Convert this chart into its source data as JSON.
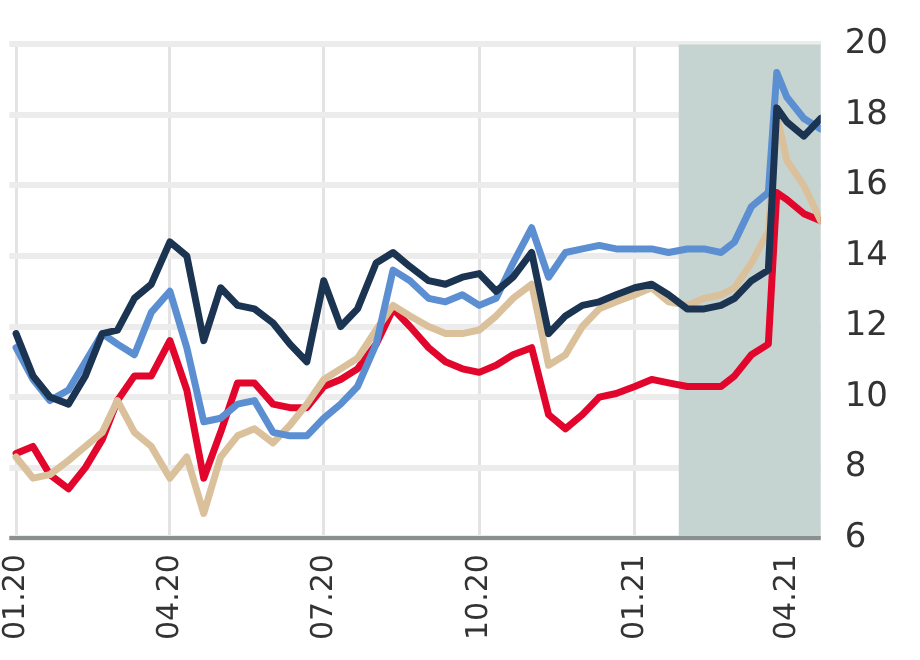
{
  "chart_data": {
    "type": "line",
    "x": [
      "2020-01-01",
      "2020-01-11",
      "2020-01-21",
      "2020-02-01",
      "2020-02-11",
      "2020-02-21",
      "2020-03-01",
      "2020-03-11",
      "2020-03-21",
      "2020-04-01",
      "2020-04-11",
      "2020-04-21",
      "2020-05-01",
      "2020-05-11",
      "2020-05-21",
      "2020-06-01",
      "2020-06-11",
      "2020-06-21",
      "2020-07-01",
      "2020-07-11",
      "2020-07-21",
      "2020-08-01",
      "2020-08-11",
      "2020-08-21",
      "2020-09-01",
      "2020-09-11",
      "2020-09-21",
      "2020-10-01",
      "2020-10-11",
      "2020-10-21",
      "2020-11-01",
      "2020-11-11",
      "2020-11-21",
      "2020-12-01",
      "2020-12-11",
      "2020-12-21",
      "2021-01-01",
      "2021-01-11",
      "2021-01-21",
      "2021-02-01",
      "2021-02-11",
      "2021-02-21",
      "2021-03-01",
      "2021-03-11",
      "2021-03-21",
      "2021-03-26",
      "2021-04-01",
      "2021-04-11",
      "2021-04-21"
    ],
    "series": [
      {
        "color": "#1b3452",
        "values": [
          11.8,
          10.6,
          10.0,
          9.8,
          10.6,
          11.8,
          11.9,
          12.8,
          13.2,
          14.4,
          14.0,
          11.6,
          13.1,
          12.6,
          12.5,
          12.1,
          11.5,
          11.0,
          13.3,
          12.0,
          12.5,
          13.8,
          14.1,
          13.7,
          13.3,
          13.2,
          13.4,
          13.5,
          13.0,
          13.4,
          14.1,
          11.8,
          12.3,
          12.6,
          12.7,
          12.9,
          13.1,
          13.2,
          12.9,
          12.5,
          12.5,
          12.6,
          12.8,
          13.3,
          13.6,
          18.2,
          17.8,
          17.4,
          17.9
        ]
      },
      {
        "color": "#5b8fd2",
        "values": [
          11.4,
          10.5,
          9.9,
          10.2,
          11.0,
          11.8,
          11.5,
          11.2,
          12.4,
          13.0,
          11.4,
          9.3,
          9.4,
          9.8,
          9.9,
          9.0,
          8.9,
          8.9,
          9.4,
          9.8,
          10.3,
          11.5,
          13.6,
          13.3,
          12.8,
          12.7,
          12.9,
          12.6,
          12.8,
          13.8,
          14.8,
          13.4,
          14.1,
          14.2,
          14.3,
          14.2,
          14.2,
          14.2,
          14.1,
          14.2,
          14.2,
          14.1,
          14.4,
          15.4,
          15.8,
          19.2,
          18.5,
          17.9,
          17.6
        ]
      },
      {
        "color": "#dac19b",
        "values": [
          8.3,
          7.7,
          7.8,
          8.2,
          8.6,
          9.0,
          9.9,
          9.0,
          8.6,
          7.7,
          8.3,
          6.7,
          8.3,
          8.9,
          9.1,
          8.7,
          9.2,
          9.8,
          10.5,
          10.8,
          11.1,
          11.9,
          12.6,
          12.3,
          12.0,
          11.8,
          11.8,
          11.9,
          12.3,
          12.8,
          13.2,
          10.9,
          11.2,
          12.0,
          12.5,
          12.7,
          12.9,
          13.1,
          12.7,
          12.6,
          12.8,
          12.9,
          13.1,
          13.8,
          14.7,
          18.0,
          16.7,
          16.0,
          15.0
        ]
      },
      {
        "color": "#e2062c",
        "values": [
          8.4,
          8.6,
          7.8,
          7.4,
          8.0,
          8.8,
          9.9,
          10.6,
          10.6,
          11.6,
          10.2,
          7.7,
          9.0,
          10.4,
          10.4,
          9.8,
          9.7,
          9.7,
          10.3,
          10.5,
          10.8,
          11.5,
          12.5,
          12.0,
          11.4,
          11.0,
          10.8,
          10.7,
          10.9,
          11.2,
          11.4,
          9.5,
          9.1,
          9.5,
          10.0,
          10.1,
          10.3,
          10.5,
          10.4,
          10.3,
          10.3,
          10.3,
          10.6,
          11.2,
          11.5,
          15.8,
          15.6,
          15.2,
          15.0
        ]
      }
    ],
    "xlim": [
      "2019-12-28",
      "2021-04-21"
    ],
    "xticks": [
      {
        "value": "2020-01-01",
        "label": "01.20"
      },
      {
        "value": "2020-04-01",
        "label": "04.20"
      },
      {
        "value": "2020-07-01",
        "label": "07.20"
      },
      {
        "value": "2020-10-01",
        "label": "10.20"
      },
      {
        "value": "2021-01-01",
        "label": "01.21"
      },
      {
        "value": "2021-04-01",
        "label": "04.21"
      }
    ],
    "ylim": [
      6,
      20
    ],
    "yticks": [
      6,
      8,
      10,
      12,
      14,
      16,
      18,
      20
    ],
    "bands": [
      {
        "axis": "x",
        "from": "2021-01-27",
        "to": "2021-04-21",
        "color": "#c6d4d1"
      }
    ],
    "grid": true,
    "legend": false,
    "line_style": "solid",
    "marker": "none"
  }
}
